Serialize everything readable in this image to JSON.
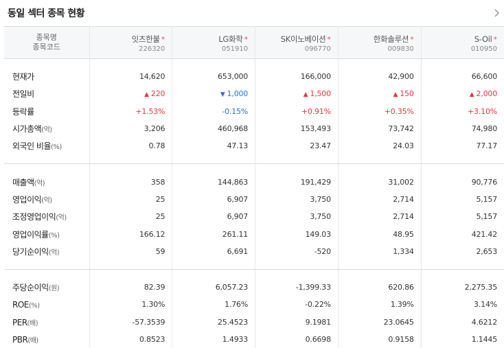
{
  "title": "동일 섹터 종목 현황",
  "header": {
    "name_label": "종목명",
    "code_label": "종목코드"
  },
  "stocks": [
    {
      "name": "잇츠한불",
      "code": "226320"
    },
    {
      "name": "LG화학",
      "code": "051910"
    },
    {
      "name": "SK이노베이션",
      "code": "096770"
    },
    {
      "name": "한화솔루션",
      "code": "009830"
    },
    {
      "name": "S-Oil",
      "code": "010950"
    }
  ],
  "colors": {
    "up": "#e8343c",
    "down": "#2f6bd9"
  },
  "rows": {
    "price": {
      "label": "현재가",
      "unit": "",
      "values": [
        "14,620",
        "653,000",
        "166,000",
        "42,900",
        "66,600"
      ]
    },
    "change": {
      "label": "전일비",
      "unit": "",
      "values": [
        "220",
        "1,000",
        "1,500",
        "150",
        "2,000"
      ]
    },
    "rate": {
      "label": "등락률",
      "unit": "",
      "values": [
        "+1.53%",
        "-0.15%",
        "+0.91%",
        "+0.35%",
        "+3.10%"
      ]
    },
    "mcap": {
      "label": "시가총액",
      "unit": "(억)",
      "values": [
        "3,206",
        "460,968",
        "153,493",
        "73,742",
        "74,980"
      ]
    },
    "foreign": {
      "label": "외국인 비율",
      "unit": "(%)",
      "values": [
        "0.78",
        "47.13",
        "23.47",
        "24.03",
        "77.17"
      ]
    },
    "sales": {
      "label": "매출액",
      "unit": "(억)",
      "values": [
        "358",
        "144,863",
        "191,429",
        "31,002",
        "90,776"
      ]
    },
    "op": {
      "label": "영업이익",
      "unit": "(억)",
      "values": [
        "25",
        "6,907",
        "3,750",
        "2,714",
        "5,157"
      ]
    },
    "adj_op": {
      "label": "조정영업이익",
      "unit": "(억)",
      "values": [
        "25",
        "6,907",
        "3,750",
        "2,714",
        "5,157"
      ]
    },
    "op_growth": {
      "label": "영업이익률",
      "unit": "(%)",
      "values": [
        "166.12",
        "261.11",
        "149.03",
        "48.95",
        "421.42"
      ]
    },
    "net": {
      "label": "당기순이익",
      "unit": "(억)",
      "values": [
        "59",
        "6,691",
        "-520",
        "1,334",
        "2,653"
      ]
    },
    "eps": {
      "label": "주당순이익",
      "unit": "(원)",
      "values": [
        "82.39",
        "6,057.23",
        "-1,399.33",
        "620.86",
        "2,275.35"
      ]
    },
    "roe": {
      "label": "ROE",
      "unit": "(%)",
      "values": [
        "1.30%",
        "1.76%",
        "-0.22%",
        "1.39%",
        "3.14%"
      ]
    },
    "per": {
      "label": "PER",
      "unit": "(배)",
      "values": [
        "-57.3539",
        "25.4523",
        "9.1981",
        "23.0645",
        "4.6212"
      ]
    },
    "pbr": {
      "label": "PBR",
      "unit": "(배)",
      "values": [
        "0.8523",
        "1.4933",
        "0.6698",
        "0.9158",
        "1.1445"
      ]
    }
  },
  "change_direction": [
    "up",
    "down",
    "up",
    "up",
    "up"
  ],
  "rate_direction": [
    "up",
    "down",
    "up",
    "up",
    "up"
  ]
}
